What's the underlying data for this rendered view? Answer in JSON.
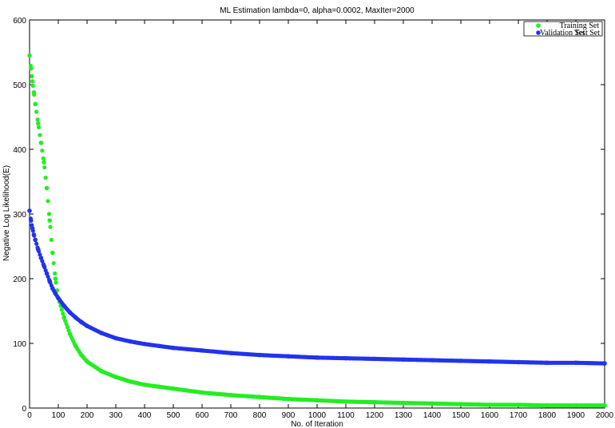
{
  "chart_data": {
    "type": "scatter",
    "title": "ML Estimation lambda=0, alpha=0.0002, MaxIter=2000",
    "xlabel": "No. of Iteration",
    "ylabel": "Negative Log Likelihood(E)",
    "xlim": [
      0,
      2000
    ],
    "ylim": [
      0,
      600
    ],
    "xticks": [
      0,
      100,
      200,
      300,
      400,
      500,
      600,
      700,
      800,
      900,
      1000,
      1100,
      1200,
      1300,
      1400,
      1500,
      1600,
      1700,
      1800,
      1900,
      2000
    ],
    "yticks": [
      0,
      100,
      200,
      300,
      400,
      500,
      600
    ],
    "grid": false,
    "legend_position": "top-right",
    "series": [
      {
        "name": "Training Set",
        "color": "#22ee22",
        "x": [
          0,
          5,
          10,
          15,
          20,
          30,
          40,
          50,
          60,
          70,
          80,
          90,
          100,
          120,
          140,
          160,
          180,
          200,
          250,
          300,
          350,
          400,
          450,
          500,
          600,
          700,
          800,
          900,
          1000,
          1100,
          1200,
          1300,
          1400,
          1500,
          1600,
          1700,
          1800,
          1900,
          2000
        ],
        "y": [
          545,
          525,
          505,
          488,
          470,
          440,
          410,
          380,
          340,
          290,
          240,
          200,
          170,
          140,
          115,
          96,
          82,
          72,
          57,
          48,
          41,
          36,
          33,
          30,
          24,
          20,
          17,
          14,
          12,
          10,
          9,
          8,
          7,
          6,
          5,
          5,
          4,
          4,
          4
        ]
      },
      {
        "name": "Validation Set",
        "color": "#2233ee",
        "x": [
          0,
          5,
          10,
          15,
          20,
          30,
          40,
          50,
          60,
          70,
          80,
          90,
          100,
          120,
          140,
          160,
          180,
          200,
          250,
          300,
          350,
          400,
          450,
          500,
          600,
          700,
          800,
          900,
          1000,
          1100,
          1200,
          1300,
          1400,
          1500,
          1600,
          1700,
          1800,
          1900,
          2000
        ],
        "y": [
          305,
          290,
          278,
          268,
          260,
          245,
          232,
          220,
          208,
          196,
          185,
          177,
          170,
          158,
          148,
          140,
          133,
          127,
          116,
          108,
          103,
          99,
          96,
          93,
          89,
          85,
          82,
          80,
          78,
          77,
          76,
          75,
          74,
          73,
          72,
          71,
          70,
          70,
          69
        ]
      },
      {
        "name": "Test Set",
        "color": "#2233ee",
        "x": [],
        "y": []
      }
    ]
  }
}
